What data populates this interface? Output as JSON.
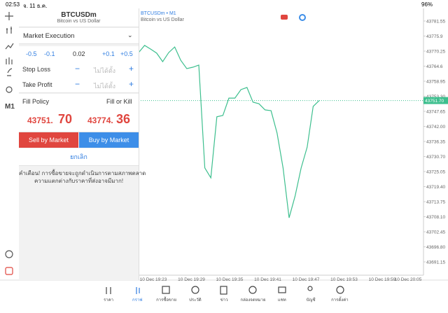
{
  "status_bar": {
    "time": "02:53",
    "date": "จ. 11 ธ.ค.",
    "battery": "96%"
  },
  "sidebar": {
    "timeframe": "M1"
  },
  "order": {
    "symbol": "BTCUSDm",
    "description": "Bitcoin vs US Dollar",
    "execution": "Market Execution",
    "volume_steps": [
      "-0.5",
      "-0.1",
      "+0.1",
      "+0.5"
    ],
    "volume": "0.02",
    "stop_loss": {
      "label": "Stop Loss",
      "value": "ไม่ได้ตั้ง"
    },
    "take_profit": {
      "label": "Take Profit",
      "value": "ไม่ได้ตั้ง"
    },
    "fill_policy": {
      "label": "Fill Policy",
      "value": "Fill or Kill"
    },
    "bid": {
      "main": "43751.",
      "pips": "70"
    },
    "ask": {
      "main": "43774.",
      "pips": "36"
    },
    "sell_button": "Sell by Market",
    "buy_button": "Buy by Market",
    "cancel": "ยกเลิก",
    "warning": [
      "คำเตือน! การซื้อขายจะถูกดำเนินการตามสภาพตลาด",
      "ความแตกต่างกับราคาที่ส่งอาจมีมาก!"
    ]
  },
  "chart": {
    "type": "line",
    "symbol_label": "BTCUSDm • M1",
    "description": "Bitcoin vs US Dollar",
    "color": "#3dbf8e",
    "values": [
      43769.7,
      43772.4,
      43771.0,
      43769.5,
      43766.3,
      43769.7,
      43771.8,
      43766.8,
      43763.7,
      43764.2,
      43765.0,
      43726.4,
      43722.7,
      43745.6,
      43746.1,
      43752.6,
      43752.6,
      43755.8,
      43756.6,
      43751.1,
      43750.5,
      43748.2,
      43747.9,
      43739.5,
      43726.4,
      43707.7,
      43715.9,
      43726.4,
      43734.2,
      43749.5,
      43751.7
    ],
    "ylim": [
      43686.16,
      43784.7
    ],
    "yticks": [
      43781.55,
      43775.9,
      43770.25,
      43764.6,
      43758.95,
      {
        "value": 43753.3,
        "label": "43753.30"
      },
      43747.65,
      {
        "value": 43742,
        "label": "43742.00"
      },
      43736.35,
      {
        "value": 43730.7,
        "label": "43730.70"
      },
      43725.05,
      {
        "value": 43719.4,
        "label": "43719.40"
      },
      43713.75,
      {
        "value": 43708.1,
        "label": "43708.10"
      },
      43702.45,
      {
        "value": 43696.8,
        "label": "43696.80"
      },
      43691.15
    ],
    "current_price": {
      "value": 43751.7,
      "label": "43751.70"
    },
    "x_labels": [
      "10 Dec 19:23",
      "10 Dec 19:29",
      "10 Dec 19:35",
      "10 Dec 19:41",
      "10 Dec 19:47",
      "10 Dec 19:53",
      "10 Dec 19:59",
      "10 Dec 20:05"
    ]
  },
  "tabs": [
    "ราคา",
    "กราฟ",
    "การซื้อขาย",
    "ประวัติ",
    "ข่าว",
    "กล่องจดหมาย",
    "แชท",
    "บัญชี",
    "การตั้งค่า"
  ]
}
